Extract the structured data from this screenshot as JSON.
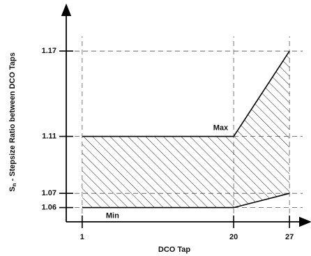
{
  "chart_data": {
    "type": "line",
    "x_label": "DCO Tap",
    "y_label": {
      "symbol": "S",
      "subscript": "n",
      "text": " - Stepsize Ratio between DCO Taps"
    },
    "x": [
      1,
      20,
      27
    ],
    "series": [
      {
        "name": "Max",
        "color": "#000000",
        "values": [
          1.11,
          1.11,
          1.17
        ]
      },
      {
        "name": "Min",
        "color": "#000000",
        "values": [
          1.06,
          1.06,
          1.07
        ]
      }
    ],
    "xlim": [
      -1,
      29
    ],
    "xticks": [
      1,
      20,
      27
    ],
    "ylim": [
      1.05,
      1.2
    ],
    "yticks": [
      1.06,
      1.07,
      1.11,
      1.17
    ],
    "grid": true,
    "hatch": true
  }
}
